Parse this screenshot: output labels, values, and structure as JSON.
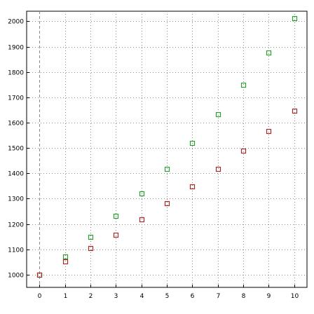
{
  "chart_data": {
    "type": "scatter",
    "title": "",
    "xlabel": "",
    "ylabel": "",
    "xlim": [
      -0.5,
      10.5
    ],
    "ylim": [
      950,
      2040
    ],
    "x_ticks": [
      0,
      1,
      2,
      3,
      4,
      5,
      6,
      7,
      8,
      9,
      10
    ],
    "y_ticks": [
      1000,
      1100,
      1200,
      1300,
      1400,
      1500,
      1600,
      1700,
      1800,
      1900,
      2000
    ],
    "grid": true,
    "legend": "none",
    "marker": "square",
    "series": [
      {
        "color": "#2ca02c",
        "x": [
          0,
          1,
          2,
          3,
          4,
          5,
          6,
          7,
          8,
          9,
          10
        ],
        "y": [
          1000,
          1072,
          1150,
          1232,
          1322,
          1418,
          1520,
          1632,
          1750,
          1876,
          2012
        ]
      },
      {
        "color": "#a52a2a",
        "x": [
          0,
          1,
          2,
          3,
          4,
          5,
          6,
          7,
          8,
          9,
          10
        ],
        "y": [
          1000,
          1052,
          1104,
          1158,
          1218,
          1282,
          1348,
          1418,
          1490,
          1566,
          1646
        ]
      }
    ]
  }
}
